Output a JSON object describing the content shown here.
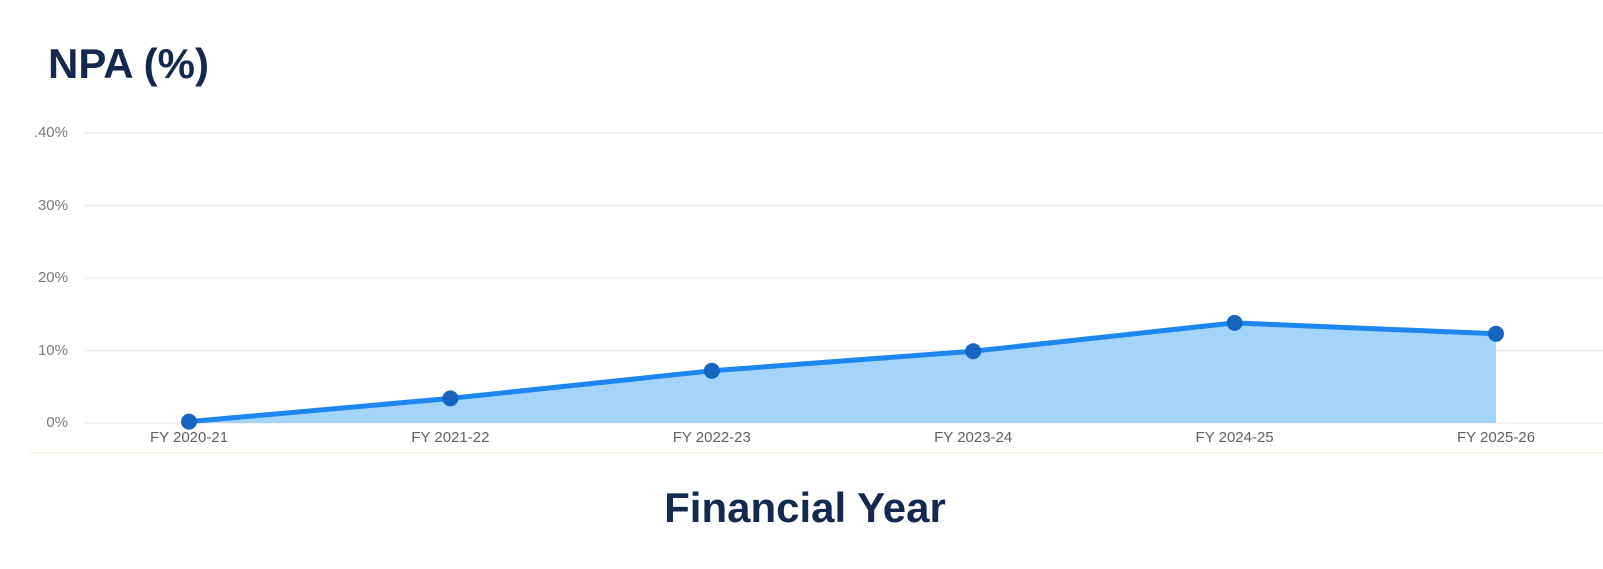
{
  "header": {
    "title": "NPA (%)"
  },
  "chart_data": {
    "type": "area",
    "title": "NPA (%)",
    "xlabel": "Financial Year",
    "ylabel": "",
    "categories": [
      "FY 2020-21",
      "FY 2021-22",
      "FY 2022-23",
      "FY 2023-24",
      "FY 2024-25",
      "FY 2025-26"
    ],
    "values": [
      0.2,
      3.4,
      7.2,
      9.9,
      13.8,
      12.3
    ],
    "ylim": [
      0,
      40
    ],
    "yticks": [
      40,
      30,
      20,
      10,
      0
    ],
    "ytick_labels": [
      ".40%",
      "30%",
      "20%",
      "10%",
      "0%"
    ],
    "grid": true,
    "legend": false,
    "colors": {
      "line": "#1d87f0",
      "area_fill": "#a5d4fb",
      "point": "#1565c0",
      "grid": "#ededed",
      "y_axis_text": "#7a7a7a",
      "x_axis_text": "#5f5f5f",
      "heading": "#13294f",
      "divider": "#f8f4e6"
    }
  }
}
